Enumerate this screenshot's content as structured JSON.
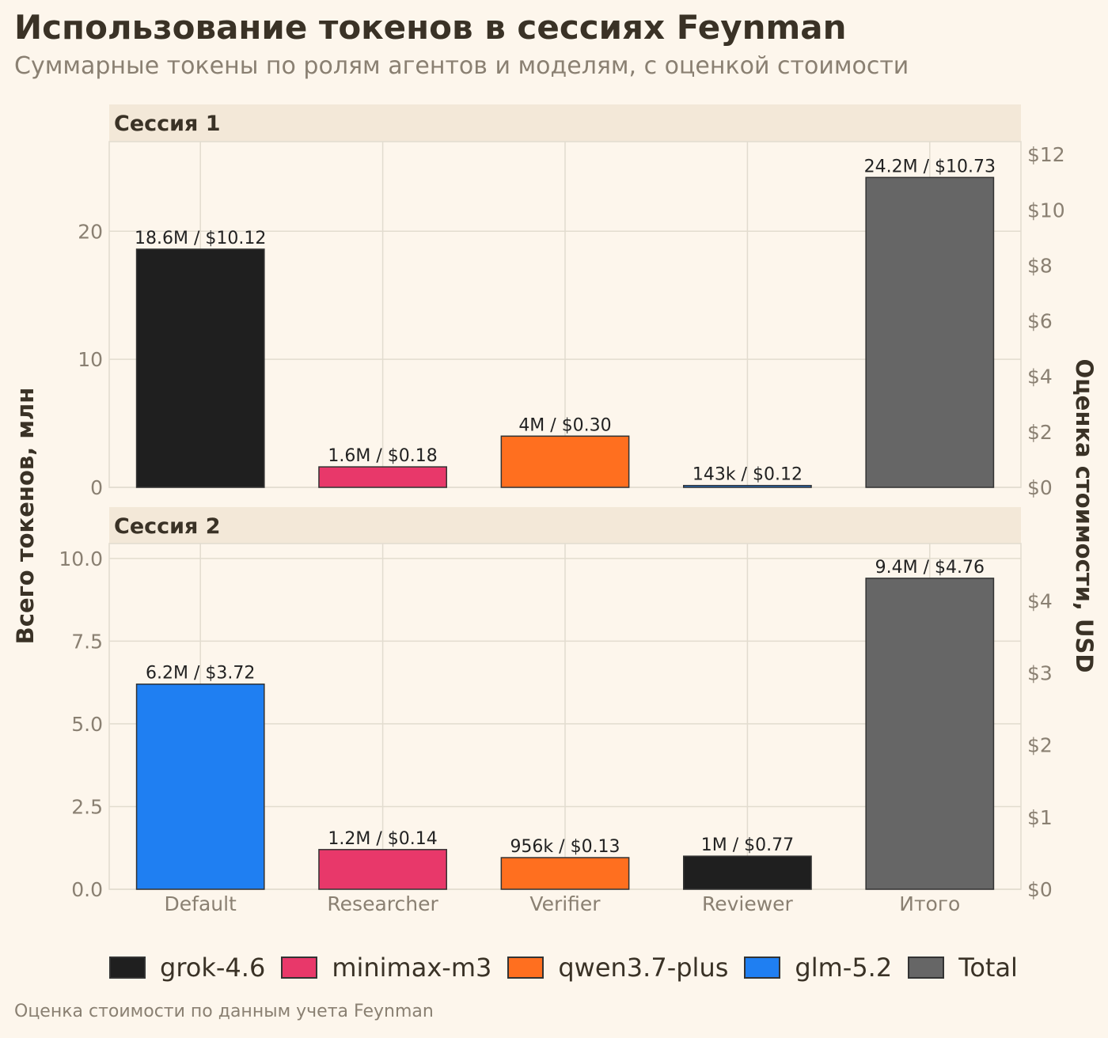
{
  "header": {
    "title": "Использование токенов в сессиях Feynman",
    "subtitle": "Суммарные токены по ролям агентов и моделям, с оценкой стоимости"
  },
  "footnote": "Оценка стоимости по данным учета Feynman",
  "colors": {
    "grok-4.6": "#1f1f1f",
    "minimax-m3": "#e8386a",
    "qwen3.7-plus": "#ff6f1f",
    "glm-5.2": "#1f7ff2",
    "Total": "#666666",
    "background": "#fdf6ec",
    "strip": "#f3e8d8",
    "grid": "#e2dccf",
    "text": "#3a3226",
    "muted": "#8a8072"
  },
  "legend": [
    {
      "label": "grok-4.6",
      "color": "#1f1f1f"
    },
    {
      "label": "minimax-m3",
      "color": "#e8386a"
    },
    {
      "label": "qwen3.7-plus",
      "color": "#ff6f1f"
    },
    {
      "label": "glm-5.2",
      "color": "#1f7ff2"
    },
    {
      "label": "Total",
      "color": "#666666"
    }
  ],
  "chart_data": {
    "type": "bar",
    "ylabel": "Всего токенов, млн",
    "y2label": "Оценка стоимости, USD",
    "categories": [
      "Default",
      "Researcher",
      "Verifier",
      "Reviewer",
      "Итого"
    ],
    "grid": true,
    "legend_position": "bottom",
    "panels": [
      {
        "title": "Сессия 1",
        "ylim": [
          0,
          27
        ],
        "yticks": [
          0,
          10,
          20
        ],
        "ytick_labels": [
          "0",
          "10",
          "20"
        ],
        "y2ticks": [
          0,
          2,
          4,
          6,
          8,
          10,
          12
        ],
        "y2tick_labels": [
          "$0",
          "$2",
          "$4",
          "$6",
          "$8",
          "$10",
          "$12"
        ],
        "y2_per_y": 0.4615,
        "bars": [
          {
            "category": "Default",
            "model": "grok-4.6",
            "value": 18.6,
            "label": "18.6M / $10.12"
          },
          {
            "category": "Researcher",
            "model": "minimax-m3",
            "value": 1.6,
            "label": "1.6M / $0.18"
          },
          {
            "category": "Verifier",
            "model": "qwen3.7-plus",
            "value": 4.0,
            "label": "4M / $0.30"
          },
          {
            "category": "Reviewer",
            "model": "glm-5.2",
            "value": 0.143,
            "label": "143k / $0.12"
          },
          {
            "category": "Итого",
            "model": "Total",
            "value": 24.2,
            "label": "24.2M / $10.73"
          }
        ]
      },
      {
        "title": "Сессия 2",
        "ylim": [
          0,
          10.45
        ],
        "yticks": [
          0,
          2.5,
          5,
          7.5,
          10
        ],
        "ytick_labels": [
          "0.0",
          "2.5",
          "5.0",
          "7.5",
          "10.0"
        ],
        "y2ticks": [
          0,
          1,
          2,
          3,
          4
        ],
        "y2tick_labels": [
          "$0",
          "$1",
          "$2",
          "$3",
          "$4"
        ],
        "y2_per_y": 0.4587,
        "bars": [
          {
            "category": "Default",
            "model": "glm-5.2",
            "value": 6.2,
            "label": "6.2M / $3.72"
          },
          {
            "category": "Researcher",
            "model": "minimax-m3",
            "value": 1.2,
            "label": "1.2M / $0.14"
          },
          {
            "category": "Verifier",
            "model": "qwen3.7-plus",
            "value": 0.956,
            "label": "956k / $0.13"
          },
          {
            "category": "Reviewer",
            "model": "grok-4.6",
            "value": 1.0,
            "label": "1M / $0.77"
          },
          {
            "category": "Итого",
            "model": "Total",
            "value": 9.4,
            "label": "9.4M / $4.76"
          }
        ]
      }
    ]
  }
}
